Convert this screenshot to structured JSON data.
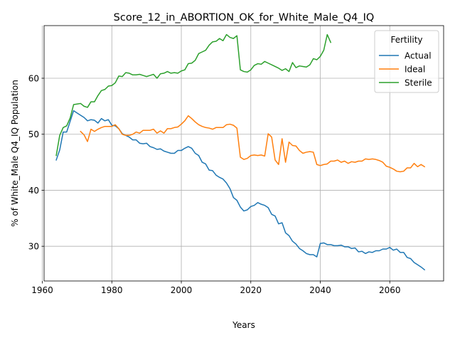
{
  "chart_data": {
    "type": "line",
    "title": "Score_12_in_ABORTION_OK_for_White_Male_Q4_IQ",
    "xlabel": "Years",
    "ylabel": "% of White_Male Q4_IQ Population",
    "xlim": [
      1960.5,
      2075.5
    ],
    "ylim": [
      23.8,
      69.4
    ],
    "xticks": [
      1960,
      1980,
      2000,
      2020,
      2040,
      2060
    ],
    "yticks": [
      30,
      40,
      50,
      60
    ],
    "grid": true,
    "legend": {
      "title": "Fertility",
      "placement": "top-right"
    },
    "series": [
      {
        "name": "Actual",
        "color": "#1f77b4",
        "points": [
          [
            1964,
            45.4
          ],
          [
            1965,
            47.2
          ],
          [
            1966,
            50.4
          ],
          [
            1967,
            50.4
          ],
          [
            1968,
            52.3
          ],
          [
            1969,
            54.2
          ],
          [
            1970,
            53.8
          ],
          [
            1971,
            53.4
          ],
          [
            1972,
            53.0
          ],
          [
            1973,
            52.4
          ],
          [
            1974,
            52.6
          ],
          [
            1975,
            52.5
          ],
          [
            1976,
            52.0
          ],
          [
            1977,
            52.8
          ],
          [
            1978,
            52.4
          ],
          [
            1979,
            52.6
          ],
          [
            1980,
            51.6
          ],
          [
            1981,
            51.5
          ],
          [
            1982,
            51.0
          ],
          [
            1983,
            50.1
          ],
          [
            1984,
            49.8
          ],
          [
            1985,
            49.5
          ],
          [
            1986,
            49.0
          ],
          [
            1987,
            49.0
          ],
          [
            1988,
            48.4
          ],
          [
            1989,
            48.3
          ],
          [
            1990,
            48.4
          ],
          [
            1991,
            47.8
          ],
          [
            1992,
            47.6
          ],
          [
            1993,
            47.3
          ],
          [
            1994,
            47.4
          ],
          [
            1995,
            47.0
          ],
          [
            1996,
            46.8
          ],
          [
            1997,
            46.6
          ],
          [
            1998,
            46.6
          ],
          [
            1999,
            47.1
          ],
          [
            2000,
            47.1
          ],
          [
            2001,
            47.5
          ],
          [
            2002,
            47.8
          ],
          [
            2003,
            47.5
          ],
          [
            2004,
            46.6
          ],
          [
            2005,
            46.2
          ],
          [
            2006,
            45.0
          ],
          [
            2007,
            44.7
          ],
          [
            2008,
            43.6
          ],
          [
            2009,
            43.5
          ],
          [
            2010,
            42.7
          ],
          [
            2011,
            42.3
          ],
          [
            2012,
            42.0
          ],
          [
            2013,
            41.3
          ],
          [
            2014,
            40.3
          ],
          [
            2015,
            38.7
          ],
          [
            2016,
            38.2
          ],
          [
            2017,
            37.0
          ],
          [
            2018,
            36.3
          ],
          [
            2019,
            36.5
          ],
          [
            2020,
            37.1
          ],
          [
            2021,
            37.3
          ],
          [
            2022,
            37.8
          ],
          [
            2023,
            37.5
          ],
          [
            2024,
            37.3
          ],
          [
            2025,
            36.9
          ],
          [
            2026,
            35.7
          ],
          [
            2027,
            35.4
          ],
          [
            2028,
            34.0
          ],
          [
            2029,
            34.2
          ],
          [
            2030,
            32.4
          ],
          [
            2031,
            31.9
          ],
          [
            2032,
            30.9
          ],
          [
            2033,
            30.4
          ],
          [
            2034,
            29.6
          ],
          [
            2035,
            29.2
          ],
          [
            2036,
            28.7
          ],
          [
            2037,
            28.5
          ],
          [
            2038,
            28.5
          ],
          [
            2039,
            28.1
          ],
          [
            2040,
            30.5
          ],
          [
            2041,
            30.6
          ],
          [
            2042,
            30.3
          ],
          [
            2043,
            30.3
          ],
          [
            2044,
            30.1
          ],
          [
            2045,
            30.1
          ],
          [
            2046,
            30.2
          ],
          [
            2047,
            29.9
          ],
          [
            2048,
            29.9
          ],
          [
            2049,
            29.6
          ],
          [
            2050,
            29.7
          ],
          [
            2051,
            29.0
          ],
          [
            2052,
            29.1
          ],
          [
            2053,
            28.7
          ],
          [
            2054,
            29.0
          ],
          [
            2055,
            28.9
          ],
          [
            2056,
            29.2
          ],
          [
            2057,
            29.2
          ],
          [
            2058,
            29.5
          ],
          [
            2059,
            29.5
          ],
          [
            2060,
            29.8
          ],
          [
            2061,
            29.3
          ],
          [
            2062,
            29.5
          ],
          [
            2063,
            28.9
          ],
          [
            2064,
            28.9
          ],
          [
            2065,
            28.0
          ],
          [
            2066,
            27.8
          ],
          [
            2067,
            27.1
          ],
          [
            2068,
            26.7
          ],
          [
            2069,
            26.3
          ],
          [
            2070,
            25.8
          ]
        ]
      },
      {
        "name": "Ideal",
        "color": "#ff7f0e",
        "points": [
          [
            1971,
            50.5
          ],
          [
            1972,
            49.9
          ],
          [
            1973,
            48.7
          ],
          [
            1974,
            50.9
          ],
          [
            1975,
            50.5
          ],
          [
            1976,
            50.9
          ],
          [
            1977,
            51.2
          ],
          [
            1978,
            51.4
          ],
          [
            1979,
            51.4
          ],
          [
            1980,
            51.4
          ],
          [
            1981,
            51.7
          ],
          [
            1982,
            51.0
          ],
          [
            1983,
            50.0
          ],
          [
            1984,
            49.8
          ],
          [
            1985,
            49.8
          ],
          [
            1986,
            50.0
          ],
          [
            1987,
            50.4
          ],
          [
            1988,
            50.2
          ],
          [
            1989,
            50.7
          ],
          [
            1990,
            50.7
          ],
          [
            1991,
            50.7
          ],
          [
            1992,
            50.9
          ],
          [
            1993,
            50.2
          ],
          [
            1994,
            50.6
          ],
          [
            1995,
            50.2
          ],
          [
            1996,
            51.0
          ],
          [
            1997,
            51.0
          ],
          [
            1998,
            51.2
          ],
          [
            1999,
            51.3
          ],
          [
            2000,
            51.8
          ],
          [
            2001,
            52.4
          ],
          [
            2002,
            53.3
          ],
          [
            2003,
            52.8
          ],
          [
            2004,
            52.2
          ],
          [
            2005,
            51.7
          ],
          [
            2006,
            51.4
          ],
          [
            2007,
            51.2
          ],
          [
            2008,
            51.1
          ],
          [
            2009,
            50.9
          ],
          [
            2010,
            51.2
          ],
          [
            2011,
            51.2
          ],
          [
            2012,
            51.2
          ],
          [
            2013,
            51.7
          ],
          [
            2014,
            51.8
          ],
          [
            2015,
            51.6
          ],
          [
            2016,
            51.1
          ],
          [
            2017,
            45.9
          ],
          [
            2018,
            45.5
          ],
          [
            2019,
            45.7
          ],
          [
            2020,
            46.2
          ],
          [
            2021,
            46.3
          ],
          [
            2022,
            46.2
          ],
          [
            2023,
            46.3
          ],
          [
            2024,
            46.1
          ],
          [
            2025,
            50.1
          ],
          [
            2026,
            49.5
          ],
          [
            2027,
            45.4
          ],
          [
            2028,
            44.6
          ],
          [
            2029,
            49.2
          ],
          [
            2030,
            45.0
          ],
          [
            2031,
            48.6
          ],
          [
            2032,
            48.0
          ],
          [
            2033,
            47.9
          ],
          [
            2034,
            47.1
          ],
          [
            2035,
            46.6
          ],
          [
            2036,
            46.8
          ],
          [
            2037,
            46.9
          ],
          [
            2038,
            46.8
          ],
          [
            2039,
            44.6
          ],
          [
            2040,
            44.4
          ],
          [
            2041,
            44.6
          ],
          [
            2042,
            44.7
          ],
          [
            2043,
            45.2
          ],
          [
            2044,
            45.2
          ],
          [
            2045,
            45.4
          ],
          [
            2046,
            45.0
          ],
          [
            2047,
            45.2
          ],
          [
            2048,
            44.8
          ],
          [
            2049,
            45.1
          ],
          [
            2050,
            45.0
          ],
          [
            2051,
            45.2
          ],
          [
            2052,
            45.2
          ],
          [
            2053,
            45.6
          ],
          [
            2054,
            45.5
          ],
          [
            2055,
            45.6
          ],
          [
            2056,
            45.5
          ],
          [
            2057,
            45.3
          ],
          [
            2058,
            45.0
          ],
          [
            2059,
            44.3
          ],
          [
            2060,
            44.1
          ],
          [
            2061,
            43.8
          ],
          [
            2062,
            43.4
          ],
          [
            2063,
            43.3
          ],
          [
            2064,
            43.4
          ],
          [
            2065,
            44.0
          ],
          [
            2066,
            44.0
          ],
          [
            2067,
            44.8
          ],
          [
            2068,
            44.2
          ],
          [
            2069,
            44.6
          ],
          [
            2070,
            44.2
          ]
        ]
      },
      {
        "name": "Sterile",
        "color": "#2ca02c",
        "points": [
          [
            1964,
            46.2
          ],
          [
            1965,
            49.8
          ],
          [
            1966,
            51.2
          ],
          [
            1967,
            51.5
          ],
          [
            1968,
            52.9
          ],
          [
            1969,
            55.3
          ],
          [
            1970,
            55.4
          ],
          [
            1971,
            55.5
          ],
          [
            1972,
            55.0
          ],
          [
            1973,
            54.8
          ],
          [
            1974,
            55.8
          ],
          [
            1975,
            55.8
          ],
          [
            1976,
            56.9
          ],
          [
            1977,
            57.8
          ],
          [
            1978,
            58.0
          ],
          [
            1979,
            58.6
          ],
          [
            1980,
            58.7
          ],
          [
            1981,
            59.2
          ],
          [
            1982,
            60.4
          ],
          [
            1983,
            60.3
          ],
          [
            1984,
            61.0
          ],
          [
            1985,
            60.9
          ],
          [
            1986,
            60.6
          ],
          [
            1987,
            60.6
          ],
          [
            1988,
            60.7
          ],
          [
            1989,
            60.5
          ],
          [
            1990,
            60.3
          ],
          [
            1991,
            60.5
          ],
          [
            1992,
            60.7
          ],
          [
            1993,
            60.0
          ],
          [
            1994,
            60.8
          ],
          [
            1995,
            60.9
          ],
          [
            1996,
            61.2
          ],
          [
            1997,
            60.9
          ],
          [
            1998,
            61.0
          ],
          [
            1999,
            60.9
          ],
          [
            2000,
            61.3
          ],
          [
            2001,
            61.5
          ],
          [
            2002,
            62.6
          ],
          [
            2003,
            62.7
          ],
          [
            2004,
            63.2
          ],
          [
            2005,
            64.4
          ],
          [
            2006,
            64.7
          ],
          [
            2007,
            65.0
          ],
          [
            2008,
            65.9
          ],
          [
            2009,
            66.5
          ],
          [
            2010,
            66.6
          ],
          [
            2011,
            67.1
          ],
          [
            2012,
            66.7
          ],
          [
            2013,
            67.8
          ],
          [
            2014,
            67.3
          ],
          [
            2015,
            67.1
          ],
          [
            2016,
            67.6
          ],
          [
            2017,
            61.5
          ],
          [
            2018,
            61.2
          ],
          [
            2019,
            61.1
          ],
          [
            2020,
            61.5
          ],
          [
            2021,
            62.3
          ],
          [
            2022,
            62.6
          ],
          [
            2023,
            62.5
          ],
          [
            2024,
            63.0
          ],
          [
            2025,
            62.7
          ],
          [
            2026,
            62.4
          ],
          [
            2027,
            62.1
          ],
          [
            2028,
            61.8
          ],
          [
            2029,
            61.4
          ],
          [
            2030,
            61.7
          ],
          [
            2031,
            61.2
          ],
          [
            2032,
            62.8
          ],
          [
            2033,
            61.9
          ],
          [
            2034,
            62.2
          ],
          [
            2035,
            62.1
          ],
          [
            2036,
            62.0
          ],
          [
            2037,
            62.4
          ],
          [
            2038,
            63.5
          ],
          [
            2039,
            63.3
          ],
          [
            2040,
            63.9
          ],
          [
            2041,
            65.0
          ],
          [
            2042,
            67.8
          ],
          [
            2043,
            66.4
          ]
        ]
      }
    ]
  }
}
